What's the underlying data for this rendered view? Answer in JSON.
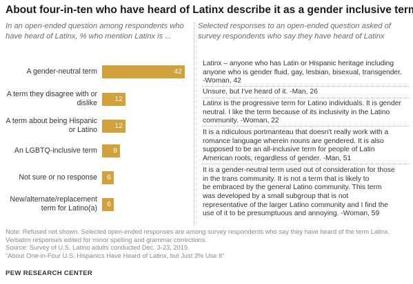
{
  "title": "About four-in-ten who have heard of Latinx describe it as a gender inclusive term",
  "left_subtitle": "In an open-ended question among respondents who have heard of Latinx, % who mention Latinx is ...",
  "right_subtitle": "Selected responses to an open-ended question asked of survey respondents who say they have heard of Latinx",
  "colors": {
    "bar": "#d2a13b",
    "bar_label": "#ffffff"
  },
  "chart_data": {
    "type": "bar",
    "orientation": "horizontal",
    "categories": [
      "A gender-neutral term",
      "A term they disagree with or dislike",
      "A term about being Hispanic or Latino",
      "An LGBTQ-inclusive term",
      "Not sure or no response",
      "New/alternate/replacement term for Latino(a)"
    ],
    "category_lines": [
      [
        "A gender-neutral term"
      ],
      [
        "A term they disagree with or",
        "dislike"
      ],
      [
        "A term about being Hispanic",
        "or Latino"
      ],
      [
        "An LGBTQ-inclusive term"
      ],
      [
        "Not sure or no response"
      ],
      [
        "New/alternate/replacement",
        "term for Latino(a)"
      ]
    ],
    "values": [
      42,
      12,
      12,
      9,
      6,
      6
    ],
    "value_labels": [
      "42",
      "12",
      "12",
      "9",
      "6",
      "6"
    ],
    "xlim": [
      0,
      42
    ]
  },
  "quotes": [
    {
      "lines": [
        "Latinx – anyone who has Latin or Hispanic heritage including",
        "anyone who is gender fluid, gay, lesbian, bisexual, transgender.",
        "-Woman, 42"
      ]
    },
    {
      "lines": [
        "Unsure, but I've heard of it. -Man, 26"
      ]
    },
    {
      "lines": [
        "Latinx is the progressive term for Latino individuals. It is gender",
        "neutral. I like the term because of its inclusivity in the Latino",
        "community. -Woman, 22"
      ]
    },
    {
      "lines": [
        "It is a ridiculous portmanteau that doesn't really work with a",
        "romance language wherein nouns are gendered. It is also",
        "supposed to be an all-inclusive term for people of Latin",
        "American roots, regardless of gender. -Man, 51"
      ]
    },
    {
      "lines": [
        "It is a gender-neutral term used out of consideration for those",
        "in the trans community. It is not a term that is likely to",
        "be embraced by the general Latino community. This term",
        "was developed by a small subgroup that is not",
        "representative of the larger Latino community and I find the",
        "use of it to be presumptuous and annoying. -Woman, 59"
      ]
    }
  ],
  "notes": {
    "note1": "Note: Refused not shown. Selected open-ended responses are among survey respondents who say they have heard of the term Latinx.",
    "note2": "Verbatim responses edited for minor spelling and grammar corrections.",
    "source": "Source: Survey of U.S. Latino adults conducted Dec. 3-23, 2019.",
    "report": "“About One-in-Four U.S. Hispanics Have Heard of Latinx, but Just 3% Use It”"
  },
  "brand": "PEW RESEARCH CENTER"
}
